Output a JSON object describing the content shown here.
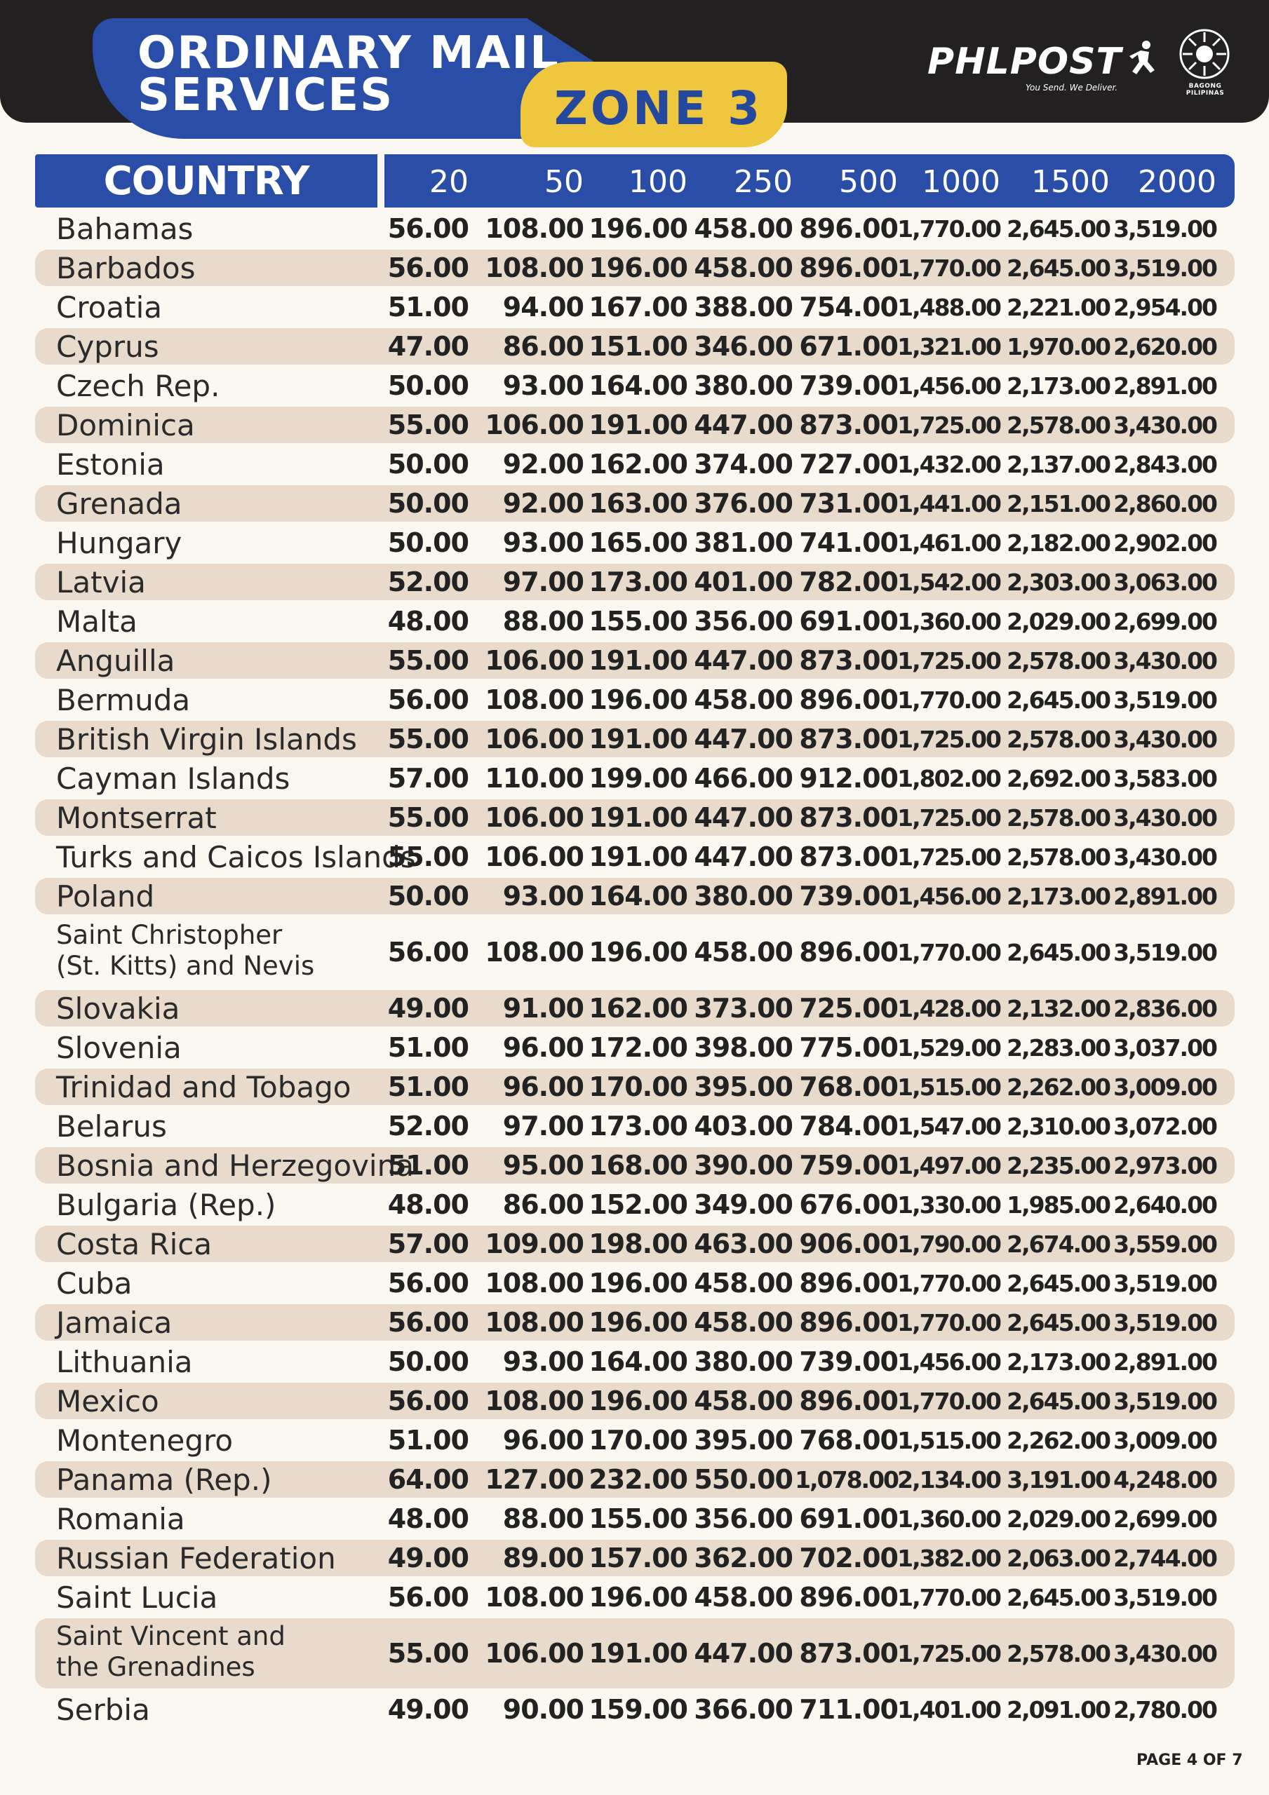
{
  "header": {
    "title": "ORDINARY MAIL\nSERVICES",
    "zone": "ZONE 3",
    "logo": "PHLPOST",
    "tagline": "You Send. We Deliver.",
    "seal_text": "BAGONG PILIPINAS"
  },
  "table": {
    "country_header": "COUNTRY",
    "weights": [
      "20",
      "50",
      "100",
      "250",
      "500",
      "1000",
      "1500",
      "2000"
    ],
    "rows": [
      {
        "country": "Bahamas",
        "rates": [
          "56.00",
          "108.00",
          "196.00",
          "458.00",
          "896.00",
          "1,770.00",
          "2,645.00",
          "3,519.00"
        ]
      },
      {
        "country": "Barbados",
        "rates": [
          "56.00",
          "108.00",
          "196.00",
          "458.00",
          "896.00",
          "1,770.00",
          "2,645.00",
          "3,519.00"
        ]
      },
      {
        "country": "Croatia",
        "rates": [
          "51.00",
          "94.00",
          "167.00",
          "388.00",
          "754.00",
          "1,488.00",
          "2,221.00",
          "2,954.00"
        ]
      },
      {
        "country": "Cyprus",
        "rates": [
          "47.00",
          "86.00",
          "151.00",
          "346.00",
          "671.00",
          "1,321.00",
          "1,970.00",
          "2,620.00"
        ]
      },
      {
        "country": "Czech Rep.",
        "rates": [
          "50.00",
          "93.00",
          "164.00",
          "380.00",
          "739.00",
          "1,456.00",
          "2,173.00",
          "2,891.00"
        ]
      },
      {
        "country": "Dominica",
        "rates": [
          "55.00",
          "106.00",
          "191.00",
          "447.00",
          "873.00",
          "1,725.00",
          "2,578.00",
          "3,430.00"
        ]
      },
      {
        "country": "Estonia",
        "rates": [
          "50.00",
          "92.00",
          "162.00",
          "374.00",
          "727.00",
          "1,432.00",
          "2,137.00",
          "2,843.00"
        ]
      },
      {
        "country": "Grenada",
        "rates": [
          "50.00",
          "92.00",
          "163.00",
          "376.00",
          "731.00",
          "1,441.00",
          "2,151.00",
          "2,860.00"
        ]
      },
      {
        "country": "Hungary",
        "rates": [
          "50.00",
          "93.00",
          "165.00",
          "381.00",
          "741.00",
          "1,461.00",
          "2,182.00",
          "2,902.00"
        ]
      },
      {
        "country": "Latvia",
        "rates": [
          "52.00",
          "97.00",
          "173.00",
          "401.00",
          "782.00",
          "1,542.00",
          "2,303.00",
          "3,063.00"
        ]
      },
      {
        "country": "Malta",
        "rates": [
          "48.00",
          "88.00",
          "155.00",
          "356.00",
          "691.00",
          "1,360.00",
          "2,029.00",
          "2,699.00"
        ]
      },
      {
        "country": "Anguilla",
        "rates": [
          "55.00",
          "106.00",
          "191.00",
          "447.00",
          "873.00",
          "1,725.00",
          "2,578.00",
          "3,430.00"
        ]
      },
      {
        "country": "Bermuda",
        "rates": [
          "56.00",
          "108.00",
          "196.00",
          "458.00",
          "896.00",
          "1,770.00",
          "2,645.00",
          "3,519.00"
        ]
      },
      {
        "country": "British Virgin Islands",
        "rates": [
          "55.00",
          "106.00",
          "191.00",
          "447.00",
          "873.00",
          "1,725.00",
          "2,578.00",
          "3,430.00"
        ]
      },
      {
        "country": "Cayman Islands",
        "rates": [
          "57.00",
          "110.00",
          "199.00",
          "466.00",
          "912.00",
          "1,802.00",
          "2,692.00",
          "3,583.00"
        ]
      },
      {
        "country": "Montserrat",
        "rates": [
          "55.00",
          "106.00",
          "191.00",
          "447.00",
          "873.00",
          "1,725.00",
          "2,578.00",
          "3,430.00"
        ]
      },
      {
        "country": "Turks and Caicos Islands",
        "rates": [
          "55.00",
          "106.00",
          "191.00",
          "447.00",
          "873.00",
          "1,725.00",
          "2,578.00",
          "3,430.00"
        ]
      },
      {
        "country": "Poland",
        "rates": [
          "50.00",
          "93.00",
          "164.00",
          "380.00",
          "739.00",
          "1,456.00",
          "2,173.00",
          "2,891.00"
        ]
      },
      {
        "country": "Saint Christopher\n (St. Kitts) and Nevis",
        "rates": [
          "56.00",
          "108.00",
          "196.00",
          "458.00",
          "896.00",
          "1,770.00",
          "2,645.00",
          "3,519.00"
        ]
      },
      {
        "country": "Slovakia",
        "rates": [
          "49.00",
          "91.00",
          "162.00",
          "373.00",
          "725.00",
          "1,428.00",
          "2,132.00",
          "2,836.00"
        ]
      },
      {
        "country": "Slovenia",
        "rates": [
          "51.00",
          "96.00",
          "172.00",
          "398.00",
          "775.00",
          "1,529.00",
          "2,283.00",
          "3,037.00"
        ]
      },
      {
        "country": "Trinidad and Tobago",
        "rates": [
          "51.00",
          "96.00",
          "170.00",
          "395.00",
          "768.00",
          "1,515.00",
          "2,262.00",
          "3,009.00"
        ]
      },
      {
        "country": "Belarus",
        "rates": [
          "52.00",
          "97.00",
          "173.00",
          "403.00",
          "784.00",
          "1,547.00",
          "2,310.00",
          "3,072.00"
        ]
      },
      {
        "country": "Bosnia and Herzegovina",
        "rates": [
          "51.00",
          "95.00",
          "168.00",
          "390.00",
          "759.00",
          "1,497.00",
          "2,235.00",
          "2,973.00"
        ]
      },
      {
        "country": "Bulgaria (Rep.)",
        "rates": [
          "48.00",
          "86.00",
          "152.00",
          "349.00",
          "676.00",
          "1,330.00",
          "1,985.00",
          "2,640.00"
        ]
      },
      {
        "country": "Costa Rica",
        "rates": [
          "57.00",
          "109.00",
          "198.00",
          "463.00",
          "906.00",
          "1,790.00",
          "2,674.00",
          "3,559.00"
        ]
      },
      {
        "country": "Cuba",
        "rates": [
          "56.00",
          "108.00",
          "196.00",
          "458.00",
          "896.00",
          "1,770.00",
          "2,645.00",
          "3,519.00"
        ]
      },
      {
        "country": "Jamaica",
        "rates": [
          "56.00",
          "108.00",
          "196.00",
          "458.00",
          "896.00",
          "1,770.00",
          "2,645.00",
          "3,519.00"
        ]
      },
      {
        "country": "Lithuania",
        "rates": [
          "50.00",
          "93.00",
          "164.00",
          "380.00",
          "739.00",
          "1,456.00",
          "2,173.00",
          "2,891.00"
        ]
      },
      {
        "country": "Mexico",
        "rates": [
          "56.00",
          "108.00",
          "196.00",
          "458.00",
          "896.00",
          "1,770.00",
          "2,645.00",
          "3,519.00"
        ]
      },
      {
        "country": "Montenegro",
        "rates": [
          "51.00",
          "96.00",
          "170.00",
          "395.00",
          "768.00",
          "1,515.00",
          "2,262.00",
          "3,009.00"
        ]
      },
      {
        "country": "Panama (Rep.)",
        "rates": [
          "64.00",
          "127.00",
          "232.00",
          "550.00",
          "1,078.00",
          "2,134.00",
          "3,191.00",
          "4,248.00"
        ]
      },
      {
        "country": "Romania",
        "rates": [
          "48.00",
          "88.00",
          "155.00",
          "356.00",
          "691.00",
          "1,360.00",
          "2,029.00",
          "2,699.00"
        ]
      },
      {
        "country": "Russian Federation",
        "rates": [
          "49.00",
          "89.00",
          "157.00",
          "362.00",
          "702.00",
          "1,382.00",
          "2,063.00",
          "2,744.00"
        ]
      },
      {
        "country": "Saint Lucia",
        "rates": [
          "56.00",
          "108.00",
          "196.00",
          "458.00",
          "896.00",
          "1,770.00",
          "2,645.00",
          "3,519.00"
        ]
      },
      {
        "country": "Saint Vincent and\n the Grenadines",
        "rates": [
          "55.00",
          "106.00",
          "191.00",
          "447.00",
          "873.00",
          "1,725.00",
          "2,578.00",
          "3,430.00"
        ]
      },
      {
        "country": "Serbia",
        "rates": [
          "49.00",
          "90.00",
          "159.00",
          "366.00",
          "711.00",
          "1,401.00",
          "2,091.00",
          "2,780.00"
        ]
      }
    ]
  },
  "footer": {
    "page": "PAGE 4 OF 7"
  },
  "colors": {
    "brand_blue": "#2a4da8",
    "zone_yellow": "#eec73f",
    "row_shade": "#e9dbcb",
    "top_bar": "#222021"
  }
}
